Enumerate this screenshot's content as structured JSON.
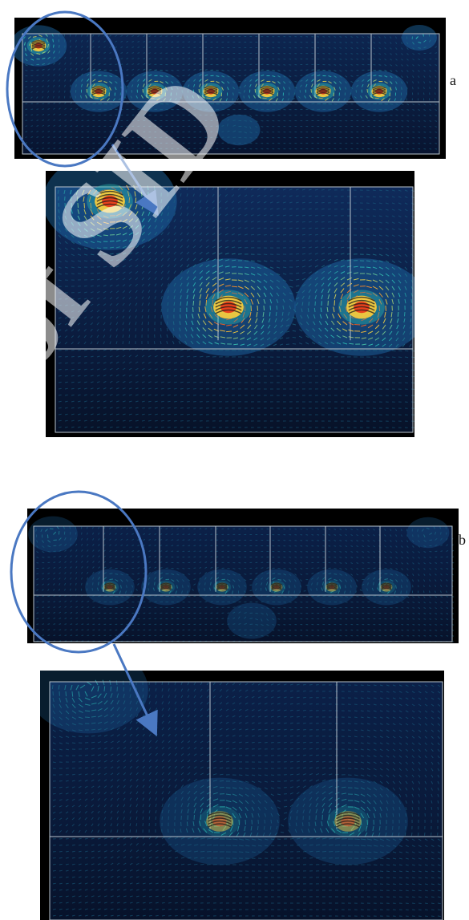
{
  "figure": {
    "panels": [
      {
        "label": "a",
        "kind": "overview",
        "hotspot_intensity": 1.0
      },
      {
        "label": "",
        "kind": "zoom",
        "hotspot_intensity": 1.0
      },
      {
        "label": "b",
        "kind": "overview",
        "hotspot_intensity": 0.45
      },
      {
        "label": "",
        "kind": "zoom",
        "hotspot_intensity": 0.45
      }
    ],
    "watermark_text": "of SID",
    "colors": {
      "background": "#000000",
      "field_base": "#0a1a3a",
      "field_mid": "#1f6fb0",
      "vector_cool": "#2fd0c0",
      "vector_warm": "#ffcf3a",
      "vector_hot": "#e83a1a",
      "frame_line": "#b8c3cc",
      "callout": "#4a78c2"
    }
  }
}
